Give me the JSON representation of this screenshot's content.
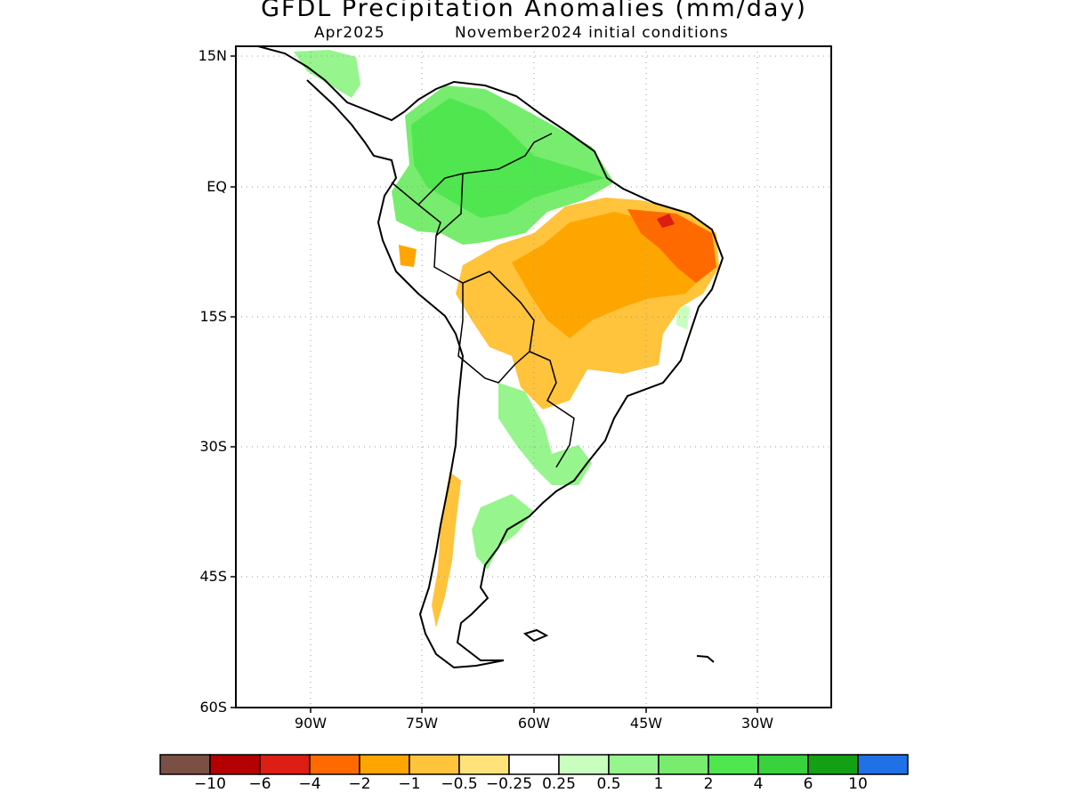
{
  "title": "GFDL Precipitation Anomalies (mm/day)",
  "subtitle_left": "Apr2025",
  "subtitle_right": "November2024 initial conditions",
  "lat_ticks": [
    "15N",
    "EQ",
    "15S",
    "30S",
    "45S",
    "60S"
  ],
  "lon_ticks": [
    "90W",
    "75W",
    "60W",
    "45W",
    "30W"
  ],
  "colorbar": {
    "colors": [
      "#7a5044",
      "#b40000",
      "#dc1e14",
      "#ff6a00",
      "#ffa500",
      "#ffc33c",
      "#ffe27a",
      "#ffffff",
      "#c8ffbe",
      "#96f58c",
      "#78ec6e",
      "#50e650",
      "#37d23c",
      "#14a014",
      "#2070e6"
    ],
    "labels": [
      "−10",
      "−6",
      "−4",
      "−2",
      "−1",
      "−0.5",
      "−0.25",
      "0.25",
      "0.5",
      "1",
      "2",
      "4",
      "6",
      "10"
    ]
  },
  "palette": {
    "frame": "#000000",
    "grid": "#9a9a9a",
    "coast": "#000000"
  }
}
